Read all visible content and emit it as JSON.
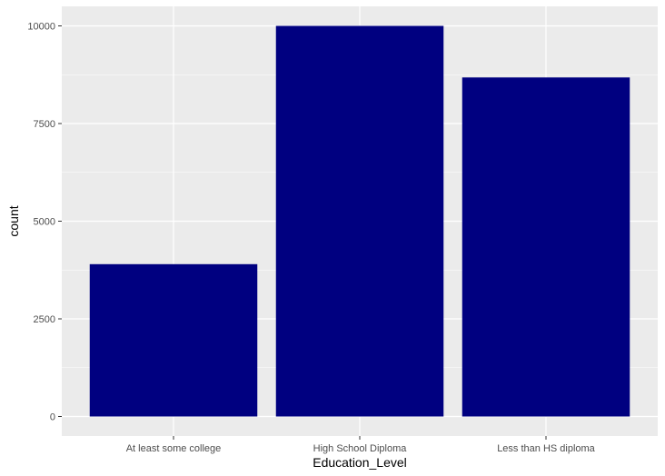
{
  "chart_data": {
    "type": "bar",
    "categories": [
      "At least some college",
      "High School Diploma",
      "Less than HS diploma"
    ],
    "values": [
      3900,
      10000,
      8680
    ],
    "xlabel": "Education_Level",
    "ylabel": "count",
    "ylim": [
      -500,
      10500
    ],
    "yticks": [
      0,
      2500,
      5000,
      7500,
      10000
    ],
    "grid": true,
    "legend": "none",
    "colors": {
      "bar_fill": "#000080",
      "panel_background": "#EBEBEB",
      "grid_major": "#FFFFFF",
      "tick_text": "#4D4D4D",
      "axis_title": "#000000"
    }
  }
}
